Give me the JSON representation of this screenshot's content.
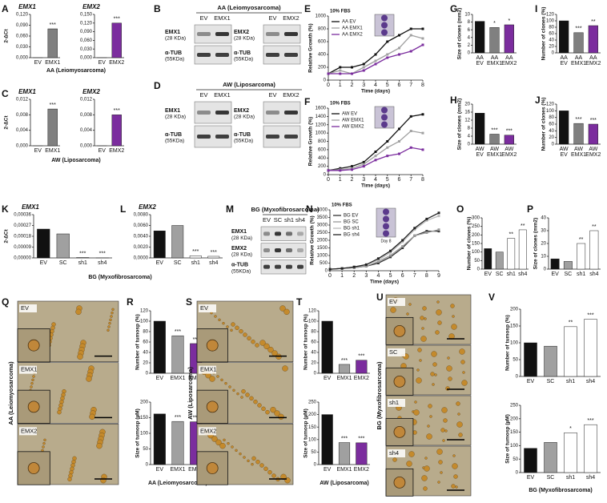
{
  "letters": [
    "A",
    "B",
    "C",
    "D",
    "E",
    "F",
    "G",
    "H",
    "I",
    "J",
    "K",
    "L",
    "M",
    "N",
    "O",
    "P",
    "Q",
    "R",
    "S",
    "T",
    "U",
    "V"
  ],
  "chart_data": [
    {
      "type": "bar",
      "title": "EMX1",
      "ylabel": "2-ΔCt",
      "categories": [
        "EV",
        "EMX1"
      ],
      "values": [
        0,
        0.08
      ],
      "colors": [
        "#111111",
        "#808080"
      ],
      "annotations": [
        null,
        "***"
      ],
      "xlabel": "AA (Leiomyosarcoma)",
      "ylim": [
        0,
        0.12
      ],
      "yticks": [
        {
          "value": 0,
          "label": "0,000"
        },
        {
          "value": 0.03,
          "label": "0,030"
        },
        {
          "value": 0.06,
          "label": "0,060"
        },
        {
          "value": 0.09,
          "label": "0,090"
        },
        {
          "value": 0.12,
          "label": "0,120"
        }
      ]
    },
    {
      "type": "bar",
      "title": "EMX2",
      "categories": [
        "EV",
        "EMX2"
      ],
      "values": [
        0,
        0.12
      ],
      "colors": [
        "#111111",
        "#7b2d9e"
      ],
      "annotations": [
        null,
        "***"
      ],
      "ylim": [
        0,
        0.15
      ],
      "yticks": [
        {
          "value": 0,
          "label": "0,000"
        },
        {
          "value": 0.03,
          "label": "0,030"
        },
        {
          "value": 0.06,
          "label": "0,060"
        },
        {
          "value": 0.09,
          "label": "0,090"
        },
        {
          "value": 0.12,
          "label": "0,120"
        },
        {
          "value": 0.15,
          "label": "0,150"
        }
      ]
    },
    {
      "type": "bar",
      "title": "EMX1",
      "ylabel": "2-ΔCt",
      "categories": [
        "EV",
        "EMX1"
      ],
      "values": [
        0,
        0.0095
      ],
      "colors": [
        "#111111",
        "#808080"
      ],
      "annotations": [
        null,
        "***"
      ],
      "xlabel": "AW (Liposarcoma)",
      "ylim": [
        0,
        0.012
      ],
      "yticks": [
        {
          "value": 0,
          "label": "0,000"
        },
        {
          "value": 0.004,
          "label": "0,004"
        },
        {
          "value": 0.008,
          "label": "0,008"
        },
        {
          "value": 0.012,
          "label": "0,012"
        }
      ]
    },
    {
      "type": "bar",
      "title": "EMX2",
      "categories": [
        "EV",
        "EMX2"
      ],
      "values": [
        0,
        0.008
      ],
      "colors": [
        "#111111",
        "#7b2d9e"
      ],
      "annotations": [
        null,
        "***"
      ],
      "ylim": [
        0,
        0.012
      ],
      "yticks": [
        {
          "value": 0,
          "label": "0,000"
        },
        {
          "value": 0.004,
          "label": "0,004"
        },
        {
          "value": 0.008,
          "label": "0,008"
        },
        {
          "value": 0.012,
          "label": "0,012"
        }
      ]
    },
    {
      "type": "line",
      "note": "10% FBS",
      "ylabel": "Relative Growth (%)",
      "xlabel": "Time (days)",
      "x": [
        0,
        1,
        2,
        3,
        4,
        5,
        6,
        7,
        8
      ],
      "xlim": [
        0,
        8
      ],
      "xticks": [
        0,
        1,
        2,
        3,
        4,
        5,
        6,
        7,
        8
      ],
      "ylim": [
        0,
        1000
      ],
      "yticks": [
        0,
        200,
        400,
        600,
        800,
        1000
      ],
      "series": [
        {
          "name": "AA EV",
          "color": "#111111",
          "values": [
            100,
            200,
            200,
            250,
            400,
            600,
            700,
            800,
            800
          ]
        },
        {
          "name": "AA EMX1",
          "color": "#a0a0a0",
          "values": [
            100,
            150,
            100,
            200,
            300,
            400,
            500,
            700,
            650
          ]
        },
        {
          "name": "AA EMX2",
          "color": "#7b2d9e",
          "values": [
            100,
            100,
            100,
            150,
            250,
            350,
            400,
            450,
            550
          ]
        }
      ]
    },
    {
      "type": "line",
      "note": "10% FBS",
      "ylabel": "Relative Growth (%)",
      "xlabel": "Time (days)",
      "x": [
        0,
        1,
        2,
        3,
        4,
        5,
        6,
        7,
        8
      ],
      "xlim": [
        0,
        8
      ],
      "xticks": [
        0,
        1,
        2,
        3,
        4,
        5,
        6,
        7,
        8
      ],
      "ylim": [
        0,
        1600
      ],
      "yticks": [
        0,
        200,
        400,
        600,
        800,
        1000,
        1200,
        1400,
        1600
      ],
      "series": [
        {
          "name": "AW EV",
          "color": "#111111",
          "values": [
            100,
            150,
            200,
            300,
            550,
            800,
            1100,
            1400,
            1450
          ]
        },
        {
          "name": "AW EMX1",
          "color": "#a0a0a0",
          "values": [
            100,
            120,
            150,
            250,
            450,
            650,
            800,
            1050,
            1000
          ]
        },
        {
          "name": "AW EMX2",
          "color": "#7b2d9e",
          "values": [
            100,
            100,
            120,
            200,
            350,
            450,
            500,
            650,
            600
          ]
        }
      ]
    },
    {
      "type": "bar",
      "ylabel": "Size of clones (mm2)",
      "categories": [
        "AA EV",
        "AA EMX1",
        "AA EMX2"
      ],
      "values": [
        8.2,
        6.6,
        7.3
      ],
      "colors": [
        "#111111",
        "#808080",
        "#7b2d9e"
      ],
      "annotations": [
        null,
        "*",
        "*"
      ],
      "ylim": [
        0,
        10
      ],
      "yticks": [
        0,
        2,
        4,
        6,
        8,
        10
      ]
    },
    {
      "type": "bar",
      "ylabel": "Number of clones (%)",
      "categories": [
        "AA EV",
        "AA EMX1",
        "AA EMX2"
      ],
      "values": [
        100,
        63,
        85
      ],
      "colors": [
        "#111111",
        "#808080",
        "#7b2d9e"
      ],
      "annotations": [
        null,
        "***",
        "**"
      ],
      "ylim": [
        0,
        120
      ],
      "yticks": [
        0,
        20,
        40,
        60,
        80,
        100,
        120
      ]
    },
    {
      "type": "bar",
      "ylabel": "Size of clones (mm2)",
      "categories": [
        "AW EV",
        "AW EMX1",
        "AW EMX2"
      ],
      "values": [
        15.5,
        5,
        4.5
      ],
      "colors": [
        "#111111",
        "#808080",
        "#7b2d9e"
      ],
      "annotations": [
        null,
        "***",
        "***"
      ],
      "ylim": [
        0,
        20
      ],
      "yticks": [
        0,
        4,
        8,
        12,
        16,
        20
      ]
    },
    {
      "type": "bar",
      "ylabel": "Number of clones (%)",
      "categories": [
        "AW EV",
        "AW EMX1",
        "AW EMX2"
      ],
      "values": [
        100,
        62,
        60
      ],
      "colors": [
        "#111111",
        "#808080",
        "#7b2d9e"
      ],
      "annotations": [
        null,
        "***",
        "***"
      ],
      "ylim": [
        0,
        120
      ],
      "yticks": [
        0,
        20,
        40,
        60,
        80,
        100,
        120
      ]
    },
    {
      "type": "bar",
      "title": "EMX1",
      "ylabel": "2-ΔCt",
      "categories": [
        "EV",
        "SC",
        "sh1",
        "sh4"
      ],
      "values": [
        0.00024,
        0.0002,
        3e-06,
        1e-06
      ],
      "colors": [
        "#111111",
        "#a0a0a0",
        "#ffffff",
        "#ffffff"
      ],
      "annotations": [
        null,
        null,
        "***",
        "***"
      ],
      "xlabel": "BG (Myxofibrosarcoma)",
      "ylim": [
        0,
        0.00036
      ],
      "yticks": [
        {
          "value": 0,
          "label": "0,00000"
        },
        {
          "value": 9e-05,
          "label": "0,00009"
        },
        {
          "value": 0.00018,
          "label": "0,00018"
        },
        {
          "value": 0.00027,
          "label": "0,00027"
        },
        {
          "value": 0.00036,
          "label": "0,00036"
        }
      ]
    },
    {
      "type": "bar",
      "title": "EMX2",
      "categories": [
        "EV",
        "SC",
        "sh1",
        "sh4"
      ],
      "values": [
        0.005,
        0.006,
        0.0004,
        0.0003
      ],
      "colors": [
        "#111111",
        "#a0a0a0",
        "#ffffff",
        "#ffffff"
      ],
      "annotations": [
        null,
        null,
        "***",
        "***"
      ],
      "ylim": [
        0,
        0.008
      ],
      "yticks": [
        {
          "value": 0,
          "label": "0,0000"
        },
        {
          "value": 0.002,
          "label": "0,0020"
        },
        {
          "value": 0.004,
          "label": "0,0040"
        },
        {
          "value": 0.006,
          "label": "0,0060"
        },
        {
          "value": 0.008,
          "label": "0,0080"
        }
      ]
    },
    {
      "type": "line",
      "note": "10% FBS",
      "inset_label": "Day 8",
      "ylabel": "Relative Growth (%)",
      "xlabel": "Time (days)",
      "x": [
        0,
        1,
        2,
        3,
        4,
        5,
        6,
        7,
        8,
        9
      ],
      "xlim": [
        0,
        9
      ],
      "xticks": [
        0,
        1,
        2,
        3,
        4,
        5,
        6,
        7,
        8,
        9
      ],
      "ylim": [
        0,
        4000
      ],
      "yticks": [
        0,
        500,
        1000,
        1500,
        2000,
        2500,
        3000,
        3500,
        4000
      ],
      "series": [
        {
          "name": "BG EV",
          "color": "#333333",
          "values": [
            100,
            150,
            200,
            300,
            500,
            900,
            1500,
            2300,
            2600,
            2600
          ]
        },
        {
          "name": "BG SC",
          "color": "#999999",
          "values": [
            100,
            150,
            200,
            300,
            600,
            1000,
            1600,
            2300,
            2500,
            2700
          ]
        },
        {
          "name": "BG sh1",
          "color": "#bbbbbb",
          "values": [
            100,
            150,
            250,
            400,
            700,
            1200,
            1900,
            2700,
            3300,
            3600
          ]
        },
        {
          "name": "BG sh4",
          "color": "#222222",
          "values": [
            100,
            150,
            250,
            400,
            800,
            1300,
            2000,
            2800,
            3400,
            3800
          ]
        }
      ]
    },
    {
      "type": "bar",
      "ylabel": "Number of clones (%)",
      "categories": [
        "EV",
        "SC",
        "sh1",
        "sh4"
      ],
      "values": [
        120,
        100,
        180,
        230
      ],
      "colors": [
        "#111111",
        "#a0a0a0",
        "#ffffff",
        "#ffffff"
      ],
      "annotations": [
        null,
        null,
        "**",
        "**"
      ],
      "ylim": [
        0,
        300
      ],
      "yticks": [
        0,
        50,
        100,
        150,
        200,
        250,
        300
      ]
    },
    {
      "type": "bar",
      "ylabel": "Size of clones (mm2)",
      "categories": [
        "EV",
        "SC",
        "sh1",
        "sh4"
      ],
      "values": [
        8,
        6,
        20,
        30
      ],
      "colors": [
        "#111111",
        "#a0a0a0",
        "#ffffff",
        "#ffffff"
      ],
      "annotations": [
        null,
        null,
        "**",
        "**"
      ],
      "ylim": [
        0,
        40
      ],
      "yticks": [
        0,
        10,
        20,
        30,
        40
      ]
    },
    {
      "type": "bar",
      "ylabel": "Number of tumosp (%)",
      "categories": [
        "EV",
        "EMX1",
        "EMX2"
      ],
      "values": [
        100,
        72,
        57
      ],
      "colors": [
        "#111111",
        "#a0a0a0",
        "#7b2d9e"
      ],
      "annotations": [
        null,
        "***",
        "***"
      ],
      "ylim": [
        0,
        120
      ],
      "yticks": [
        0,
        20,
        40,
        60,
        80,
        100,
        120
      ]
    },
    {
      "type": "bar",
      "ylabel": "Size of tumosp (µM)",
      "categories": [
        "EV",
        "EMX1",
        "EMX2"
      ],
      "values": [
        162,
        138,
        137
      ],
      "colors": [
        "#111111",
        "#a0a0a0",
        "#7b2d9e"
      ],
      "annotations": [
        null,
        "***",
        "***"
      ],
      "xlabel": "AA (Leiomyosarcoma)",
      "ylim": [
        0,
        200
      ],
      "yticks": [
        0,
        50,
        100,
        150,
        200
      ]
    },
    {
      "type": "bar",
      "ylabel": "Number of tumosp (%)",
      "categories": [
        "EV",
        "EMX1",
        "EMX2"
      ],
      "values": [
        100,
        17,
        25
      ],
      "colors": [
        "#111111",
        "#a0a0a0",
        "#7b2d9e"
      ],
      "annotations": [
        null,
        "***",
        "***"
      ],
      "ylim": [
        0,
        120
      ],
      "yticks": [
        0,
        20,
        40,
        60,
        80,
        100,
        120
      ]
    },
    {
      "type": "bar",
      "ylabel": "Size of tumosp (µM)",
      "categories": [
        "EV",
        "EMX1",
        "EMX2"
      ],
      "values": [
        200,
        88,
        87
      ],
      "colors": [
        "#111111",
        "#a0a0a0",
        "#7b2d9e"
      ],
      "annotations": [
        null,
        "***",
        "***"
      ],
      "xlabel": "AW (Liposarcoma)",
      "ylim": [
        0,
        250
      ],
      "yticks": [
        0,
        50,
        100,
        150,
        200,
        250
      ]
    },
    {
      "type": "bar",
      "ylabel": "Number of tumosp (%)",
      "categories": [
        "EV",
        "SC",
        "sh1",
        "sh4"
      ],
      "values": [
        100,
        90,
        148,
        170
      ],
      "colors": [
        "#111111",
        "#a0a0a0",
        "#ffffff",
        "#ffffff"
      ],
      "annotations": [
        null,
        null,
        "**",
        "***"
      ],
      "ylim": [
        0,
        200
      ],
      "yticks": [
        0,
        50,
        100,
        150,
        200
      ]
    },
    {
      "type": "bar",
      "ylabel": "Size of tumosp (µM)",
      "categories": [
        "EV",
        "SC",
        "sh1",
        "sh4"
      ],
      "values": [
        90,
        112,
        148,
        178
      ],
      "colors": [
        "#111111",
        "#a0a0a0",
        "#ffffff",
        "#ffffff"
      ],
      "annotations": [
        null,
        null,
        "*",
        "***"
      ],
      "xlabel": "BG (Myxofibrosarcoma)",
      "ylim": [
        0,
        250
      ],
      "yticks": [
        0,
        50,
        100,
        150,
        200,
        250
      ]
    }
  ],
  "blots": [
    {
      "title": "AA (Leiomyosarcoma)",
      "panels": [
        {
          "lanes": [
            "EV",
            "EMX1"
          ],
          "labels": [
            "EMX1",
            "(28 KDa)",
            "α-TUB",
            "(55KDa)"
          ]
        },
        {
          "lanes": [
            "EV",
            "EMX2"
          ],
          "labels": [
            "EMX2",
            "(28 KDa)",
            "α-TUB",
            "(55KDa)"
          ]
        }
      ]
    },
    {
      "title": "AW (Liposarcoma)",
      "panels": [
        {
          "lanes": [
            "EV",
            "EMX1"
          ],
          "labels": [
            "EMX1",
            "(28 KDa)",
            "α-TUB",
            "(55KDa)"
          ]
        },
        {
          "lanes": [
            "EV",
            "EMX2"
          ],
          "labels": [
            "EMX2",
            "(28 KDa)",
            "α-TUB",
            "(55KDa)"
          ]
        }
      ]
    },
    {
      "title": "BG (Myxofibrosarcoma)",
      "panels": [
        {
          "lanes": [
            "EV",
            "SC",
            "sh1",
            "sh4"
          ],
          "labels": [
            "EMX1",
            "(28 KDa)",
            "EMX2",
            "(28 KDa)",
            "α-TUB",
            "(55KDa)"
          ]
        }
      ]
    }
  ],
  "micrographs": [
    {
      "label": "AA (Leiomyosarcoma)",
      "rows": [
        "EV",
        "EMX1",
        "EMX2"
      ]
    },
    {
      "label": "AW (Liposarcoma)",
      "rows": [
        "EV",
        "EMX1",
        "EMX2"
      ]
    },
    {
      "label": "BG (Myxofibrosarcoma)",
      "rows": [
        "EV",
        "SC",
        "sh1",
        "sh4"
      ]
    }
  ]
}
